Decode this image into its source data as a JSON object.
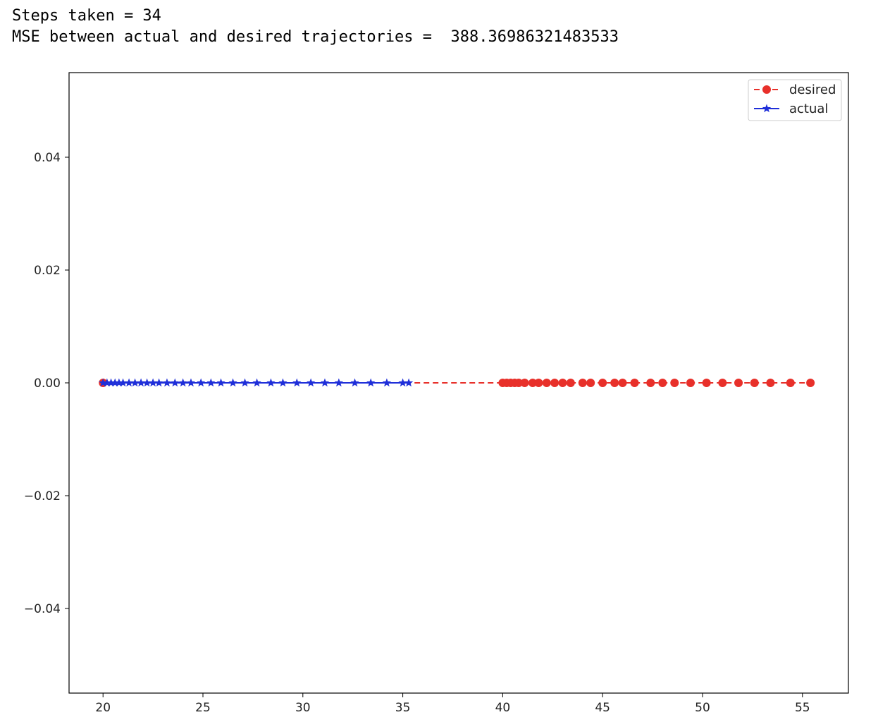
{
  "output": {
    "steps_line": "Steps taken = 34",
    "mse_line": "MSE between actual and desired trajectories =  388.36986321483533"
  },
  "chart_data": {
    "type": "line",
    "xlim": [
      18.3,
      57.3
    ],
    "ylim": [
      -0.055,
      0.055
    ],
    "xticks": [
      20,
      25,
      30,
      35,
      40,
      45,
      50,
      55
    ],
    "yticks": [
      0.04,
      0.02,
      0.0,
      -0.02,
      -0.04
    ],
    "xtick_labels": [
      "20",
      "25",
      "30",
      "35",
      "40",
      "45",
      "50",
      "55"
    ],
    "ytick_labels": [
      "0.04",
      "0.02",
      "0.00",
      "−0.02",
      "−0.04"
    ],
    "grid": false,
    "legend_position": "top-right",
    "series": [
      {
        "name": "desired",
        "color": "#e8302a",
        "line_style": "dashed",
        "marker": "circle",
        "x": [
          20.0,
          40.0,
          40.2,
          40.4,
          40.6,
          40.8,
          41.1,
          41.5,
          41.8,
          42.2,
          42.6,
          43.0,
          43.4,
          44.0,
          44.4,
          45.0,
          45.6,
          46.0,
          46.6,
          47.4,
          48.0,
          48.6,
          49.4,
          50.2,
          51.0,
          51.8,
          52.6,
          53.4,
          54.4,
          55.4
        ],
        "y": [
          0,
          0,
          0,
          0,
          0,
          0,
          0,
          0,
          0,
          0,
          0,
          0,
          0,
          0,
          0,
          0,
          0,
          0,
          0,
          0,
          0,
          0,
          0,
          0,
          0,
          0,
          0,
          0,
          0,
          0
        ]
      },
      {
        "name": "actual",
        "color": "#1f2fd9",
        "line_style": "solid",
        "marker": "star",
        "x": [
          20.0,
          20.2,
          20.4,
          20.6,
          20.8,
          21.0,
          21.3,
          21.6,
          21.9,
          22.2,
          22.5,
          22.8,
          23.2,
          23.6,
          24.0,
          24.4,
          24.9,
          25.4,
          25.9,
          26.5,
          27.1,
          27.7,
          28.4,
          29.0,
          29.7,
          30.4,
          31.1,
          31.8,
          32.6,
          33.4,
          34.2,
          35.0,
          35.3
        ],
        "y": [
          0,
          0,
          0,
          0,
          0,
          0,
          0,
          0,
          0,
          0,
          0,
          0,
          0,
          0,
          0,
          0,
          0,
          0,
          0,
          0,
          0,
          0,
          0,
          0,
          0,
          0,
          0,
          0,
          0,
          0,
          0,
          0,
          0
        ]
      }
    ]
  }
}
